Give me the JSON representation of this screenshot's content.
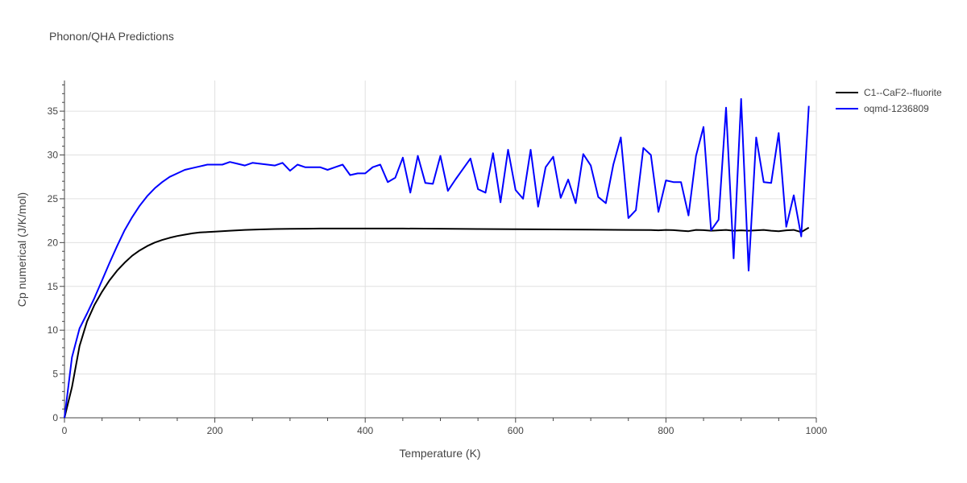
{
  "chart_data": {
    "type": "line",
    "title": "Phonon/QHA Predictions",
    "xlabel": "Temperature (K)",
    "ylabel": "Cp numerical (J/K/mol)",
    "xlim": [
      0,
      1000
    ],
    "ylim": [
      0,
      38.5
    ],
    "xticks": [
      0,
      200,
      400,
      600,
      800,
      1000
    ],
    "yticks": [
      0,
      5,
      10,
      15,
      20,
      25,
      30,
      35
    ],
    "grid": true,
    "legend_position": "top-right",
    "series": [
      {
        "name": "C1--CaF2--fluorite",
        "color": "#000000",
        "x": [
          0,
          10,
          20,
          30,
          40,
          50,
          60,
          70,
          80,
          90,
          100,
          110,
          120,
          130,
          140,
          150,
          160,
          170,
          180,
          190,
          200,
          220,
          240,
          260,
          280,
          300,
          320,
          340,
          360,
          380,
          400,
          450,
          500,
          550,
          600,
          650,
          700,
          750,
          780,
          790,
          800,
          810,
          820,
          830,
          840,
          850,
          860,
          870,
          880,
          890,
          900,
          910,
          920,
          930,
          940,
          950,
          960,
          970,
          980,
          990
        ],
        "y": [
          0,
          3.5,
          8.2,
          11,
          12.9,
          14.4,
          15.7,
          16.8,
          17.7,
          18.5,
          19.1,
          19.6,
          20.0,
          20.3,
          20.55,
          20.75,
          20.9,
          21.05,
          21.15,
          21.2,
          21.25,
          21.35,
          21.45,
          21.5,
          21.55,
          21.57,
          21.58,
          21.6,
          21.6,
          21.6,
          21.6,
          21.6,
          21.58,
          21.55,
          21.52,
          21.5,
          21.47,
          21.45,
          21.43,
          21.4,
          21.45,
          21.42,
          21.35,
          21.3,
          21.45,
          21.42,
          21.35,
          21.4,
          21.45,
          21.35,
          21.4,
          21.35,
          21.4,
          21.45,
          21.35,
          21.3,
          21.4,
          21.45,
          21.2,
          21.7
        ]
      },
      {
        "name": "oqmd-1236809",
        "color": "#0000ff",
        "x": [
          0,
          10,
          20,
          30,
          40,
          50,
          60,
          70,
          80,
          90,
          100,
          110,
          120,
          130,
          140,
          150,
          160,
          170,
          180,
          190,
          200,
          210,
          220,
          230,
          240,
          250,
          260,
          270,
          280,
          290,
          300,
          310,
          320,
          330,
          340,
          350,
          360,
          370,
          380,
          390,
          400,
          410,
          420,
          430,
          440,
          450,
          460,
          470,
          480,
          490,
          500,
          510,
          520,
          530,
          540,
          550,
          560,
          570,
          580,
          590,
          600,
          610,
          620,
          630,
          640,
          650,
          660,
          670,
          680,
          690,
          700,
          710,
          720,
          730,
          740,
          750,
          760,
          770,
          780,
          790,
          800,
          810,
          820,
          830,
          840,
          850,
          860,
          870,
          880,
          890,
          900,
          910,
          920,
          930,
          940,
          950,
          960,
          970,
          980,
          990
        ],
        "y": [
          0,
          6.9,
          10.2,
          11.9,
          13.7,
          15.7,
          17.7,
          19.6,
          21.4,
          22.9,
          24.2,
          25.3,
          26.2,
          26.9,
          27.5,
          27.9,
          28.3,
          28.5,
          28.7,
          28.9,
          28.9,
          28.9,
          29.2,
          29.0,
          28.8,
          29.1,
          29.0,
          28.9,
          28.8,
          29.1,
          28.2,
          28.9,
          28.6,
          28.6,
          28.6,
          28.3,
          28.6,
          28.9,
          27.7,
          27.9,
          27.9,
          28.6,
          28.9,
          26.9,
          27.4,
          29.7,
          25.7,
          29.9,
          26.8,
          26.7,
          29.9,
          25.9,
          27.2,
          28.4,
          29.6,
          26.1,
          25.7,
          30.2,
          24.6,
          30.6,
          26.0,
          25.0,
          30.6,
          24.1,
          28.6,
          29.8,
          25.1,
          27.2,
          24.5,
          30.1,
          28.8,
          25.2,
          24.5,
          28.9,
          32.0,
          22.8,
          23.7,
          30.8,
          30.0,
          23.5,
          27.1,
          26.9,
          26.9,
          23.1,
          29.9,
          33.2,
          21.4,
          22.6,
          35.4,
          18.2,
          36.4,
          16.8,
          32.0,
          26.9,
          26.8,
          32.5,
          21.8,
          25.4,
          20.7,
          35.6
        ]
      }
    ]
  }
}
